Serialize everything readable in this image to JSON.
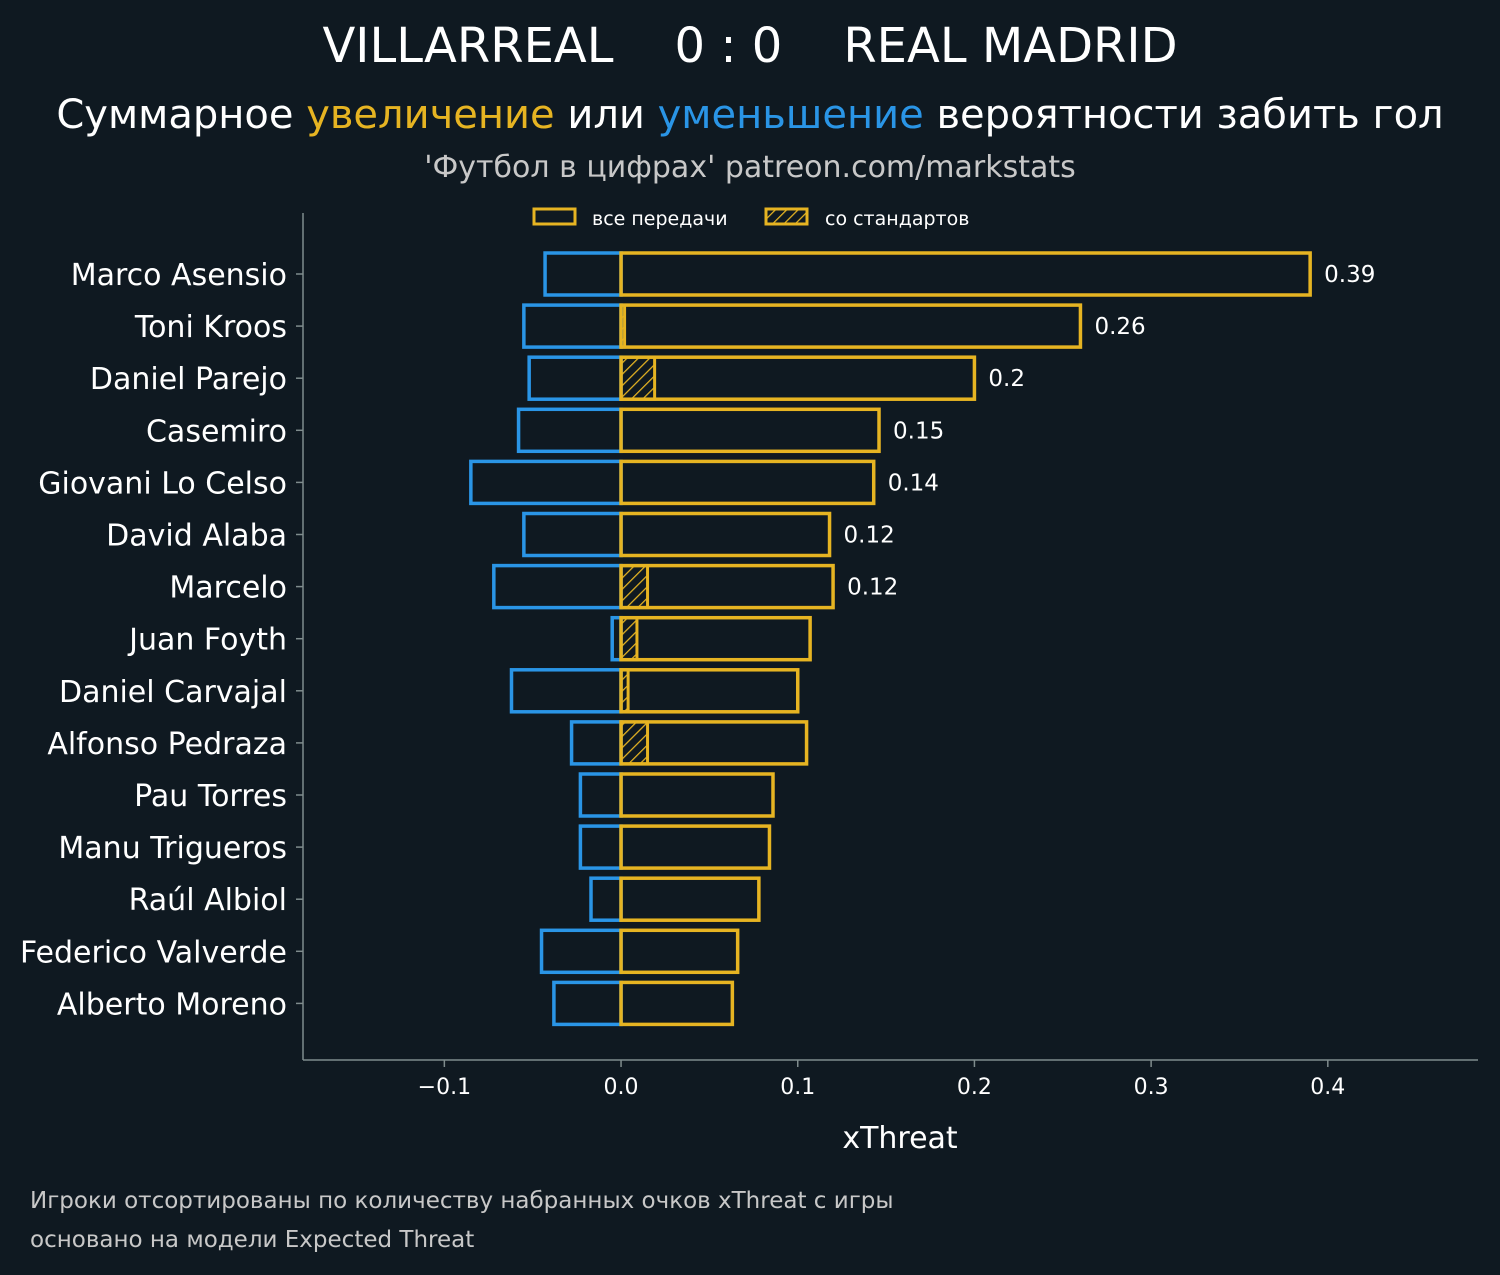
{
  "header": {
    "home_team": "VILLARREAL",
    "score": "0 : 0",
    "away_team": "REAL MADRID"
  },
  "subtitle": {
    "part1": "Суммарное ",
    "increase": "увеличение",
    "part2": " или ",
    "decrease": "уменьшение",
    "part3": " вероятности забить гол"
  },
  "credit": "'Футбол в цифрах' patreon.com/markstats",
  "footnotes": {
    "line1": "Игроки отсортированы по количеству набранных очков xThreat с игры",
    "line2": "основано на модели Expected Threat"
  },
  "colors": {
    "background": "#0f1921",
    "increase": "#e6b422",
    "decrease": "#2a95e6",
    "axis": "#7f8c8d"
  },
  "chart_data": {
    "type": "bar",
    "orientation": "horizontal",
    "xlabel": "xThreat",
    "xlim": [
      -0.18,
      0.485
    ],
    "xticks": [
      -0.1,
      0.0,
      0.1,
      0.2,
      0.3,
      0.4
    ],
    "xtick_labels": [
      "−0.1",
      "0.0",
      "0.1",
      "0.2",
      "0.3",
      "0.4"
    ],
    "legend": {
      "position": "top",
      "items": [
        {
          "label": "все передачи",
          "style": "outline"
        },
        {
          "label": "со стандартов",
          "style": "hatched"
        }
      ]
    },
    "categories": [
      "Marco Asensio",
      "Toni Kroos",
      "Daniel Parejo",
      "Casemiro",
      "Giovani Lo Celso",
      "David Alaba",
      "Marcelo",
      "Juan Foyth",
      "Daniel Carvajal",
      "Alfonso Pedraza",
      "Pau Torres",
      "Manu Trigueros",
      "Raúl Albiol",
      "Federico Valverde",
      "Alberto Moreno"
    ],
    "series": [
      {
        "name": "увеличение (все передачи)",
        "values": [
          0.39,
          0.26,
          0.2,
          0.146,
          0.143,
          0.118,
          0.12,
          0.107,
          0.1,
          0.105,
          0.086,
          0.084,
          0.078,
          0.066,
          0.063
        ]
      },
      {
        "name": "увеличение (со стандартов)",
        "values": [
          0,
          0.002,
          0.019,
          0,
          0,
          0,
          0.015,
          0.009,
          0.004,
          0.015,
          0,
          0,
          0,
          0,
          0
        ]
      },
      {
        "name": "уменьшение",
        "values": [
          -0.043,
          -0.055,
          -0.052,
          -0.058,
          -0.085,
          -0.055,
          -0.072,
          -0.005,
          -0.062,
          -0.028,
          -0.023,
          -0.023,
          -0.017,
          -0.045,
          -0.038
        ]
      }
    ],
    "value_labels": [
      "0.39",
      "0.26",
      "0.2",
      "0.15",
      "0.14",
      "0.12",
      "0.12",
      "",
      "",
      "",
      "",
      "",
      "",
      "",
      ""
    ]
  }
}
